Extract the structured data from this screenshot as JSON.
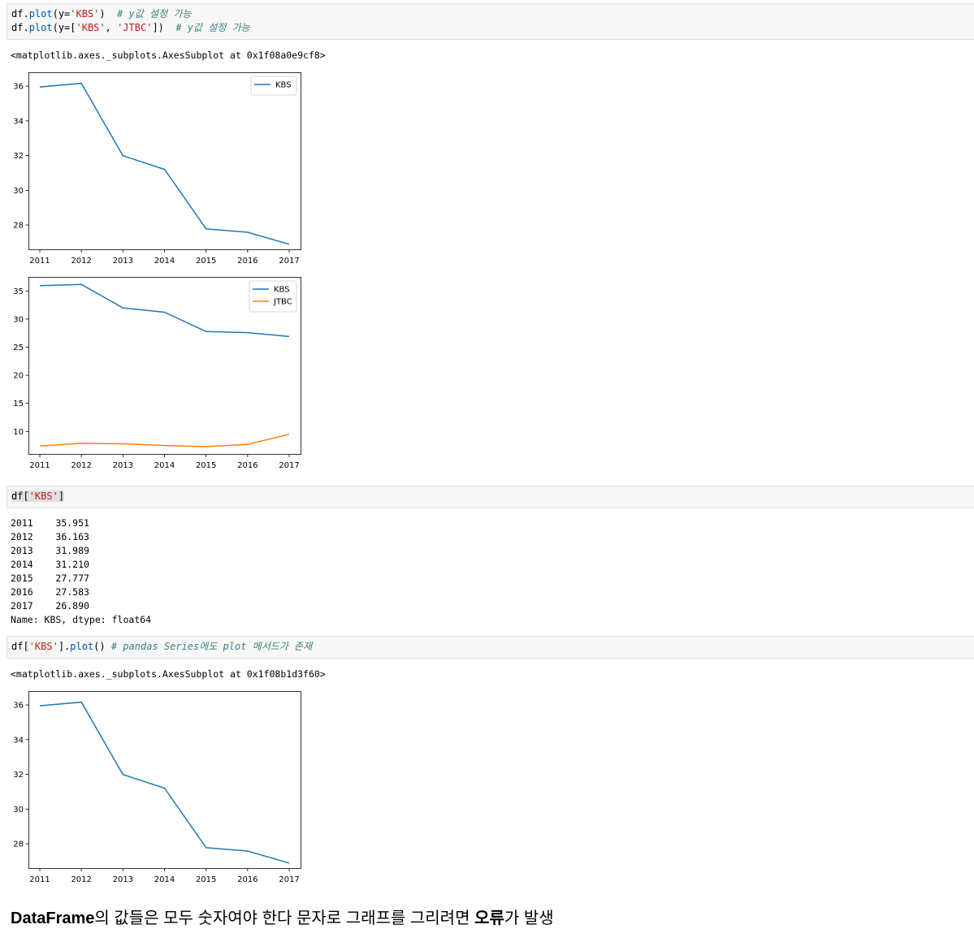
{
  "cell1": {
    "line1": {
      "pre": "df.",
      "fn": "plot",
      "open": "(y=",
      "str": "'KBS'",
      "close": ")  ",
      "comment": "# y값 설정 가능"
    },
    "line2": {
      "pre": "df.",
      "fn": "plot",
      "open": "(y=[",
      "str1": "'KBS'",
      "sep": ", ",
      "str2": "'JTBC'",
      "close": "])  ",
      "comment": "# y값 설정 가능"
    }
  },
  "out1": "<matplotlib.axes._subplots.AxesSubplot at 0x1f08a0e9cf8>",
  "cell2": {
    "pre": "df[",
    "str": "'KBS'",
    "close": "]"
  },
  "series_output": {
    "rows": [
      {
        "index": "2011",
        "value": "35.951"
      },
      {
        "index": "2012",
        "value": "36.163"
      },
      {
        "index": "2013",
        "value": "31.989"
      },
      {
        "index": "2014",
        "value": "31.210"
      },
      {
        "index": "2015",
        "value": "27.777"
      },
      {
        "index": "2016",
        "value": "27.583"
      },
      {
        "index": "2017",
        "value": "26.890"
      }
    ],
    "footer": "Name: KBS, dtype: float64"
  },
  "cell3": {
    "pre": "df[",
    "str": "'KBS'",
    "mid": "].",
    "fn": "plot",
    "close": "() ",
    "comment": "# pandas Series에도 plot 메서드가 존재"
  },
  "out3": "<matplotlib.axes._subplots.AxesSubplot at 0x1f08b1d3f60>",
  "markdown": {
    "part1": "DataFrame",
    "part2": "의 값들은 모두 숫자여야 한다 문자로 그래프를 그리려면 ",
    "bold": "오류",
    "part3": "가 발생"
  },
  "colors": {
    "kbs": "#1f77b4",
    "jtbc": "#ff7f0e"
  },
  "chart_data": [
    {
      "type": "line",
      "categories": [
        "2011",
        "2012",
        "2013",
        "2014",
        "2015",
        "2016",
        "2017"
      ],
      "series": [
        {
          "name": "KBS",
          "values": [
            35.951,
            36.163,
            31.989,
            31.21,
            27.777,
            27.583,
            26.89
          ]
        }
      ],
      "yticks": [
        28,
        30,
        32,
        34,
        36
      ],
      "ylim": [
        26.6,
        36.8
      ],
      "legend": "upper right"
    },
    {
      "type": "line",
      "categories": [
        "2011",
        "2012",
        "2013",
        "2014",
        "2015",
        "2016",
        "2017"
      ],
      "series": [
        {
          "name": "KBS",
          "values": [
            35.951,
            36.163,
            31.989,
            31.21,
            27.777,
            27.583,
            26.89
          ]
        },
        {
          "name": "JTBC",
          "values": [
            7.4,
            7.9,
            7.8,
            7.5,
            7.3,
            7.7,
            9.5
          ]
        }
      ],
      "yticks": [
        10,
        15,
        20,
        25,
        30,
        35
      ],
      "ylim": [
        6.0,
        37.5
      ],
      "legend": "upper right"
    },
    {
      "type": "line",
      "categories": [
        "2011",
        "2012",
        "2013",
        "2014",
        "2015",
        "2016",
        "2017"
      ],
      "series": [
        {
          "name": "",
          "values": [
            35.951,
            36.163,
            31.989,
            31.21,
            27.777,
            27.583,
            26.89
          ]
        }
      ],
      "yticks": [
        28,
        30,
        32,
        34,
        36
      ],
      "ylim": [
        26.6,
        36.8
      ],
      "legend": "none"
    }
  ]
}
